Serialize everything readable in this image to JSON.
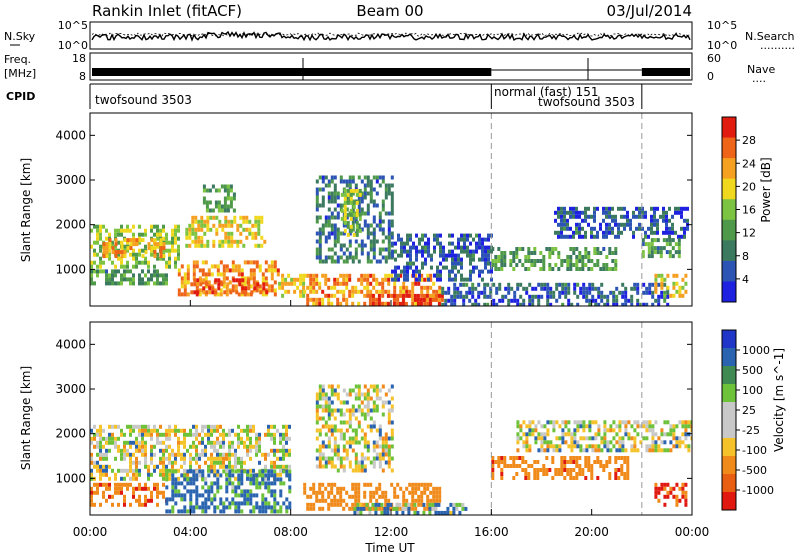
{
  "header": {
    "station": "Rankin Inlet (fitACF)",
    "beam": "Beam 00",
    "date": "03/Jul/2014"
  },
  "noise_panel": {
    "left_label": "N.Sky",
    "right_label": "N.Search",
    "right_legend": "..........",
    "left_ticks": [
      "10^5",
      "10^0"
    ],
    "right_ticks": [
      "10^5",
      "10^0"
    ]
  },
  "freq_panel": {
    "left_label_1": "Freq.",
    "left_label_2": "[MHz]",
    "right_label": "Nave",
    "right_legend": "....",
    "left_ticks": [
      "18",
      "8"
    ],
    "right_ticks": [
      "60",
      "0"
    ]
  },
  "cpid_panel": {
    "label": "CPID",
    "segments": [
      {
        "name": "twofsound 3503",
        "start_hour": 0,
        "end_hour": 16
      },
      {
        "name": "normal (fast) 151",
        "start_hour": 16,
        "end_hour": 22
      },
      {
        "name": "twofsound 3503",
        "start_hour": 16,
        "end_hour": 22
      }
    ]
  },
  "power_panel": {
    "ylabel": "Slant Range [km]",
    "colorbar_label": "Power [dB]",
    "colorbar_ticks": [
      "4",
      "8",
      "12",
      "16",
      "20",
      "24",
      "28"
    ],
    "colorbar_colors": [
      "#1e22e0",
      "#2c54b4",
      "#3c7a60",
      "#4f9a4a",
      "#7cc342",
      "#f0d81e",
      "#f5a020",
      "#ee6418",
      "#e11b10"
    ]
  },
  "velocity_panel": {
    "ylabel": "Slant Range [km]",
    "colorbar_label": "Velocity [m s^-1]",
    "colorbar_ticks": [
      "1000",
      "500",
      "100",
      "25",
      "-25",
      "-100",
      "-500",
      "-1000"
    ],
    "colorbar_colors": [
      "#1f36c8",
      "#2a64b0",
      "#3f8a52",
      "#6dc23a",
      "#c8c8c8",
      "#c8c8c8",
      "#f5c22a",
      "#f08a1a",
      "#e85e12",
      "#e01810"
    ]
  },
  "x_axis": {
    "label": "Time UT",
    "ticks": [
      "00:00",
      "04:00",
      "08:00",
      "12:00",
      "16:00",
      "20:00",
      "00:00"
    ]
  },
  "chart_data": {
    "type": "heatmap",
    "title": "Rankin Inlet (fitACF)",
    "subtitle": "Beam 00",
    "xlabel": "Time UT",
    "ylabel": "Slant Range [km]",
    "xlim": [
      0,
      24
    ],
    "ylim": [
      180,
      4500
    ],
    "yticks": [
      1000,
      2000,
      3000,
      4000
    ],
    "grid": false,
    "legend": "right",
    "cpid_boundaries_hours": [
      16,
      22
    ],
    "power_regions": [
      {
        "t0": 0.0,
        "t1": 3.5,
        "r0": 1100,
        "r1": 2000,
        "dB": 16
      },
      {
        "t0": 0.5,
        "t1": 3.0,
        "r0": 1300,
        "r1": 1700,
        "dB": 22
      },
      {
        "t0": 0.0,
        "t1": 3.0,
        "r0": 700,
        "r1": 1000,
        "dB": 12
      },
      {
        "t0": 3.5,
        "t1": 7.5,
        "r0": 400,
        "r1": 1200,
        "dB": 24
      },
      {
        "t0": 4.0,
        "t1": 7.0,
        "r0": 500,
        "r1": 800,
        "dB": 28
      },
      {
        "t0": 3.8,
        "t1": 7.0,
        "r0": 1500,
        "r1": 2200,
        "dB": 20
      },
      {
        "t0": 4.5,
        "t1": 5.8,
        "r0": 2300,
        "r1": 2900,
        "dB": 12
      },
      {
        "t0": 7.5,
        "t1": 8.5,
        "r0": 400,
        "r1": 900,
        "dB": 20
      },
      {
        "t0": 9.0,
        "t1": 12.0,
        "r0": 1200,
        "r1": 3100,
        "dB": 8
      },
      {
        "t0": 10.0,
        "t1": 10.8,
        "r0": 1800,
        "r1": 2800,
        "dB": 16
      },
      {
        "t0": 8.5,
        "t1": 14.0,
        "r0": 200,
        "r1": 900,
        "dB": 24
      },
      {
        "t0": 11.0,
        "t1": 14.0,
        "r0": 200,
        "r1": 450,
        "dB": 28
      },
      {
        "t0": 12.0,
        "t1": 16.0,
        "r0": 800,
        "r1": 1800,
        "dB": 6
      },
      {
        "t0": 14.0,
        "t1": 23.0,
        "r0": 200,
        "r1": 700,
        "dB": 6
      },
      {
        "t0": 16.0,
        "t1": 21.0,
        "r0": 1000,
        "r1": 1500,
        "dB": 12
      },
      {
        "t0": 18.5,
        "t1": 23.8,
        "r0": 1700,
        "r1": 2400,
        "dB": 6
      },
      {
        "t0": 22.0,
        "t1": 23.5,
        "r0": 1300,
        "r1": 1700,
        "dB": 12
      },
      {
        "t0": 22.5,
        "t1": 23.8,
        "r0": 400,
        "r1": 900,
        "dB": 20
      }
    ],
    "velocity_regions": [
      {
        "t0": 0.0,
        "t1": 8.0,
        "r0": 1000,
        "r1": 2200,
        "v": 0
      },
      {
        "t0": 0.0,
        "t1": 3.0,
        "r0": 400,
        "r1": 900,
        "v": -400
      },
      {
        "t0": 3.0,
        "t1": 8.0,
        "r0": 300,
        "r1": 1200,
        "v": 150
      },
      {
        "t0": 9.0,
        "t1": 12.0,
        "r0": 1200,
        "r1": 3100,
        "v": 0
      },
      {
        "t0": 8.5,
        "t1": 14.0,
        "r0": 300,
        "r1": 900,
        "v": -300
      },
      {
        "t0": 10.5,
        "t1": 15.0,
        "r0": 200,
        "r1": 450,
        "v": 100
      },
      {
        "t0": 16.0,
        "t1": 21.5,
        "r0": 1000,
        "r1": 1500,
        "v": -400
      },
      {
        "t0": 17.0,
        "t1": 24.0,
        "r0": 1600,
        "r1": 2300,
        "v": 0
      },
      {
        "t0": 22.5,
        "t1": 23.8,
        "r0": 400,
        "r1": 900,
        "v": -500
      }
    ]
  }
}
